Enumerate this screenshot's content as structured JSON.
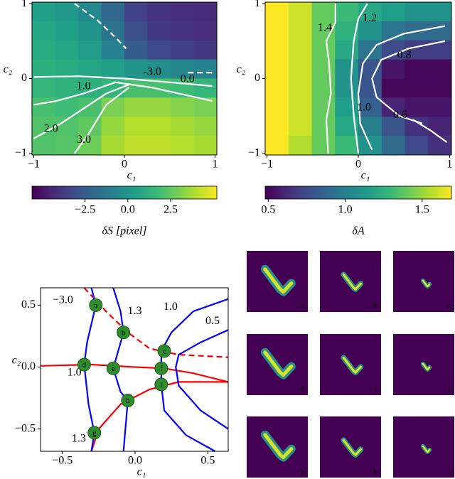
{
  "chart_data": [
    {
      "type": "heatmap",
      "xlabel": "c₁",
      "ylabel": "c₂",
      "xlim": [
        -1.02,
        1.02
      ],
      "ylim": [
        -1.02,
        1.02
      ],
      "xticks": [
        {
          "value": -1,
          "label": "−1"
        },
        0,
        1
      ],
      "yticks": [
        {
          "value": -1,
          "label": "−1"
        },
        0,
        1
      ],
      "z": [
        [
          0.5,
          0.2,
          -0.5,
          -2,
          -3.5,
          -4,
          -4.2,
          -4.3
        ],
        [
          0.8,
          0.5,
          0,
          -1.5,
          -3,
          -3.8,
          -4,
          -4.2
        ],
        [
          1,
          0.8,
          0.3,
          -0.8,
          -2.5,
          -3.2,
          -3.6,
          -3.8
        ],
        [
          1.2,
          1,
          0.8,
          0.5,
          0,
          -0.3,
          -0.6,
          -0.8
        ],
        [
          1.5,
          1.3,
          1.2,
          1.5,
          2,
          2,
          1.8,
          1.5
        ],
        [
          2,
          1.8,
          2,
          3,
          3.5,
          3.5,
          3.2,
          3
        ],
        [
          2.2,
          2.2,
          2.5,
          3.5,
          4,
          4,
          3.8,
          3.5
        ],
        [
          2.2,
          2.3,
          2.8,
          3.8,
          4.2,
          4.2,
          4,
          3.8
        ]
      ],
      "colorbar": {
        "label": "δS [pixel]",
        "lim": [
          -5.6,
          5.2
        ],
        "ticks": [
          {
            "value": -2.5,
            "label": "−2.5"
          },
          {
            "value": 0,
            "label": "0.0"
          },
          2.5
        ]
      },
      "contour_color": "#ffffff",
      "contours": [
        {
          "level": {
            "value": -3,
            "label": "-3.0"
          },
          "dashed": true,
          "x": [
            -0.55,
            -0.3,
            -0.1,
            0.02,
            null,
            0.7,
            0.97
          ],
          "y": [
            1.0,
            0.78,
            0.55,
            0.4,
            null,
            0.08,
            0.08
          ]
        },
        {
          "level": {
            "value": 0,
            "label": "0.0"
          },
          "dashed": false,
          "x": [
            -1,
            -0.5,
            0,
            0.5,
            0.97
          ],
          "y": [
            0.02,
            0.03,
            0.0,
            -0.05,
            -0.1
          ]
        },
        {
          "level": {
            "value": 1,
            "label": "1.0"
          },
          "dashed": false,
          "x": [
            -1,
            -0.75,
            -0.45,
            -0.1,
            0.3,
            0.97
          ],
          "y": [
            -0.35,
            -0.3,
            -0.2,
            -0.05,
            -0.12,
            -0.3
          ]
        },
        {
          "level": {
            "value": 2,
            "label": "2.0"
          },
          "dashed": false,
          "x": [
            -1,
            -0.7,
            -0.45,
            -0.2,
            0.05
          ],
          "y": [
            -0.8,
            -0.6,
            -0.4,
            -0.2,
            -0.08
          ]
        },
        {
          "level": {
            "value": 3,
            "label": "3.0"
          },
          "dashed": false,
          "x": [
            -0.55,
            -0.4,
            -0.2,
            0.05
          ],
          "y": [
            -1.0,
            -0.75,
            -0.35,
            -0.12
          ]
        }
      ]
    },
    {
      "type": "heatmap",
      "xlabel": "c₁",
      "ylabel": "c₂",
      "xlim": [
        -1.02,
        1.02
      ],
      "ylim": [
        -1.02,
        1.02
      ],
      "xticks": [
        {
          "value": -1,
          "label": "−1"
        },
        0,
        1
      ],
      "yticks": [
        {
          "value": -1,
          "label": "−1"
        },
        0,
        1
      ],
      "z": [
        [
          1.8,
          1.6,
          1.4,
          1.3,
          1.2,
          1.15,
          1.1,
          1.1
        ],
        [
          1.85,
          1.6,
          1.4,
          1.25,
          1.1,
          0.95,
          0.9,
          0.9
        ],
        [
          1.85,
          1.6,
          1.4,
          1.2,
          0.95,
          0.75,
          0.7,
          0.7
        ],
        [
          1.9,
          1.6,
          1.4,
          1.1,
          0.8,
          0.55,
          0.5,
          0.5
        ],
        [
          1.9,
          1.6,
          1.4,
          1.1,
          0.8,
          0.5,
          0.5,
          0.5
        ],
        [
          1.85,
          1.6,
          1.4,
          1.15,
          0.85,
          0.6,
          0.55,
          0.55
        ],
        [
          1.8,
          1.6,
          1.4,
          1.2,
          1.0,
          0.8,
          0.65,
          0.6
        ],
        [
          1.75,
          1.55,
          1.4,
          1.3,
          1.1,
          0.9,
          0.75,
          0.65
        ]
      ],
      "colorbar": {
        "label": "δA",
        "lim": [
          0.48,
          1.69
        ],
        "ticks": [
          0.5,
          {
            "value": 1,
            "label": "1.0"
          },
          1.5
        ]
      },
      "contour_color": "#ffffff",
      "contours": [
        {
          "level": 1.4,
          "dashed": false,
          "x": [
            -0.25,
            -0.25,
            -0.35,
            -0.32,
            -0.3,
            -0.35,
            -0.33
          ],
          "y": [
            1.0,
            0.75,
            0.5,
            0.2,
            -0.2,
            -0.55,
            -1.0
          ]
        },
        {
          "level": 1.2,
          "dashed": false,
          "x": [
            0.1,
            0.0,
            -0.05,
            -0.08,
            -0.05,
            0.0
          ],
          "y": [
            1.0,
            0.8,
            0.5,
            0.0,
            -0.5,
            -1.0
          ]
        },
        {
          "level": {
            "value": 1,
            "label": "1.0"
          },
          "dashed": false,
          "x": [
            0.95,
            0.5,
            0.2,
            0.05,
            0.0,
            0.02,
            0.15
          ],
          "y": [
            0.7,
            0.6,
            0.45,
            0.2,
            -0.2,
            -0.6,
            -0.95
          ]
        },
        {
          "level": 0.8,
          "dashed": false,
          "x": [
            0.95,
            0.55,
            0.25,
            0.15,
            0.2,
            0.45,
            0.7
          ],
          "y": [
            0.5,
            0.4,
            0.25,
            0.0,
            -0.25,
            -0.5,
            -0.6
          ]
        },
        {
          "level": 0.6,
          "dashed": false,
          "x": [
            0.97,
            0.8,
            0.6
          ],
          "y": [
            -0.85,
            -0.7,
            -0.55
          ]
        }
      ]
    },
    {
      "type": "contour",
      "xlabel": "c₁",
      "ylabel": "c₂",
      "xlim": [
        -0.65,
        0.64
      ],
      "ylim": [
        -0.68,
        0.64
      ],
      "xticks": [
        {
          "value": -0.5,
          "label": "−0.5"
        },
        {
          "value": 0,
          "label": "0.0"
        },
        0.5
      ],
      "yticks": [
        {
          "value": -0.5,
          "label": "−0.5"
        },
        {
          "value": 0,
          "label": "0.0"
        },
        0.5
      ],
      "contours": [
        {
          "level": {
            "value": -3,
            "label": "−3.0"
          },
          "color": "#ff0000",
          "dashed": true,
          "x": [
            -0.35,
            -0.2,
            -0.05,
            0.1,
            0.3,
            0.64
          ],
          "y": [
            0.64,
            0.45,
            0.28,
            0.15,
            0.1,
            0.08
          ]
        },
        {
          "level": {
            "value": 1,
            "label": "1.0"
          },
          "color": "#ff0000",
          "dashed": false,
          "x": [
            -0.65,
            -0.3,
            0,
            0.2,
            0.4,
            0.64
          ],
          "y": [
            0.01,
            0.02,
            0,
            -0.01,
            -0.05,
            -0.12
          ]
        },
        {
          "level": 1.3,
          "color": "#ff0000",
          "dashed": false,
          "x": [
            -0.3,
            -0.25,
            -0.1,
            0.1,
            0.3,
            0.64
          ],
          "y": [
            -0.68,
            -0.5,
            -0.3,
            -0.18,
            -0.12,
            -0.12
          ]
        },
        {
          "color": "#0000ff",
          "dashed": false,
          "x": [
            -0.3,
            -0.27,
            -0.33,
            -0.35,
            -0.32,
            -0.28,
            -0.3
          ],
          "y": [
            0.64,
            0.5,
            0.2,
            0.02,
            -0.3,
            -0.53,
            -0.68
          ]
        },
        {
          "level": 1.3,
          "color": "#0000ff",
          "dashed": false,
          "x": [
            -0.15,
            -0.1,
            -0.08,
            -0.15,
            -0.1,
            -0.05,
            -0.08
          ],
          "y": [
            0.64,
            0.45,
            0.28,
            -0.01,
            -0.2,
            -0.27,
            -0.68
          ]
        },
        {
          "level": {
            "value": 1,
            "label": "1.0"
          },
          "color": "#0000ff",
          "dashed": false,
          "x": [
            0.64,
            0.4,
            0.25,
            0.18,
            0.18,
            0.2,
            0.35,
            0.55
          ],
          "y": [
            0.55,
            0.45,
            0.28,
            0.13,
            -0.14,
            -0.35,
            -0.55,
            -0.68
          ]
        },
        {
          "level": 0.5,
          "color": "#0000ff",
          "dashed": false,
          "x": [
            0.64,
            0.45,
            0.3,
            0.28,
            0.3,
            0.45,
            0.64
          ],
          "y": [
            0.3,
            0.2,
            0.1,
            0,
            -0.15,
            -0.35,
            -0.5
          ]
        }
      ],
      "point_color": "#2e8b2e",
      "points": [
        {
          "label": "a",
          "x": -0.27,
          "y": 0.5
        },
        {
          "label": "b",
          "x": -0.08,
          "y": 0.28
        },
        {
          "label": "c",
          "x": 0.2,
          "y": 0.13
        },
        {
          "label": "d",
          "x": -0.35,
          "y": 0.02
        },
        {
          "label": "e",
          "x": -0.15,
          "y": -0.01
        },
        {
          "label": "f",
          "x": 0.18,
          "y": -0.01
        },
        {
          "label": "g",
          "x": -0.28,
          "y": -0.53
        },
        {
          "label": "h",
          "x": -0.05,
          "y": -0.27
        },
        {
          "label": "i",
          "x": 0.18,
          "y": -0.14
        }
      ]
    }
  ],
  "thumbnails": [
    {
      "label": "a"
    },
    {
      "label": "b"
    },
    {
      "label": "c"
    },
    {
      "label": "d"
    },
    {
      "label": "e"
    },
    {
      "label": "f"
    },
    {
      "label": "g"
    },
    {
      "label": "h"
    },
    {
      "label": "i"
    }
  ]
}
